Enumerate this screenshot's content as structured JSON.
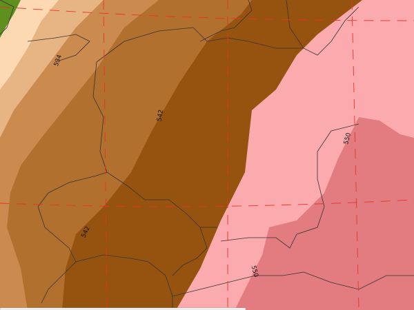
{
  "map": {
    "contour_labels": [
      "534",
      "542",
      "542",
      "550",
      "550"
    ],
    "colors": {
      "green": "#5f8f1c",
      "band_526": "#fdd9b3",
      "band_530": "#e7b583",
      "band_534": "#cc8b4e",
      "band_538": "#b2702f",
      "band_542": "#96530f",
      "band_546": "#fbabad",
      "band_550": "#e27c80",
      "grid": "#e8322a",
      "borders": "#333333"
    }
  }
}
